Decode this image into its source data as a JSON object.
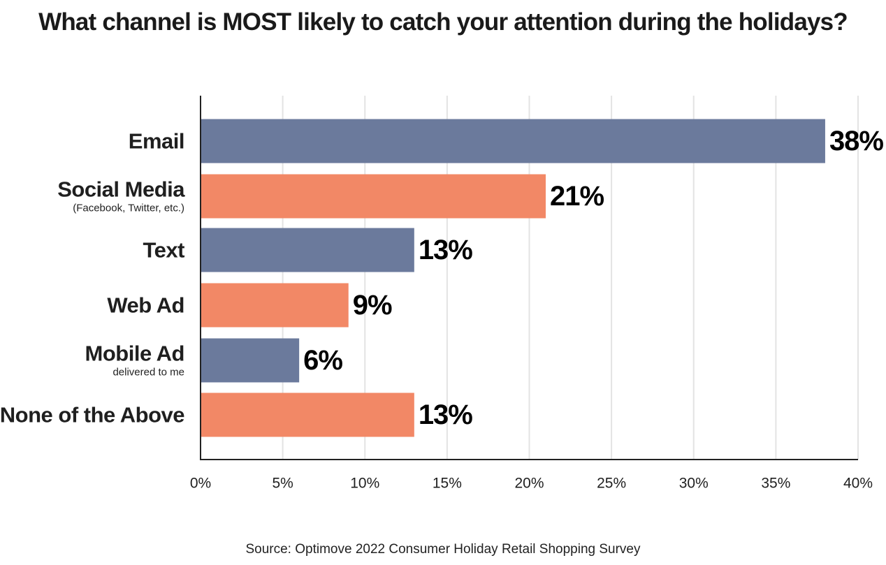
{
  "chart_data": {
    "type": "bar",
    "orientation": "horizontal",
    "title": "What channel is MOST likely to catch your attention during the holidays?",
    "categories": [
      "Email",
      "Social Media",
      "Text",
      "Web Ad",
      "Mobile Ad",
      "None of the Above"
    ],
    "subtitles": [
      "",
      "(Facebook, Twitter, etc.)",
      "",
      "",
      "delivered to me",
      ""
    ],
    "values": [
      38,
      21,
      13,
      9,
      6,
      13
    ],
    "value_labels": [
      "38%",
      "21%",
      "13%",
      "9%",
      "6%",
      "13%"
    ],
    "bar_colors": [
      "#6b7a9c",
      "#f28866",
      "#6b7a9c",
      "#f28866",
      "#6b7a9c",
      "#f28866"
    ],
    "xlim": [
      0,
      40
    ],
    "x_ticks": [
      0,
      5,
      10,
      15,
      20,
      25,
      30,
      35,
      40
    ],
    "x_tick_labels": [
      "0%",
      "5%",
      "10%",
      "15%",
      "20%",
      "25%",
      "30%",
      "35%",
      "40%"
    ],
    "grid": true,
    "xlabel": "",
    "ylabel": "",
    "source": "Source: Optimove 2022 Consumer Holiday Retail Shopping Survey"
  }
}
